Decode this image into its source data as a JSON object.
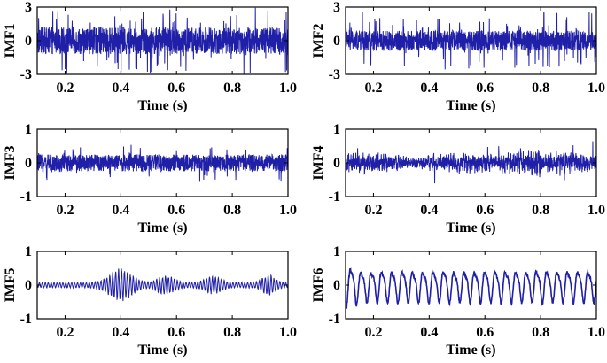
{
  "figure": {
    "signal_color": "#1f1fa8",
    "axis_color": "#000000"
  },
  "chart_data": [
    {
      "type": "line",
      "ylabel": "IMF1",
      "xlabel": "Time (s)",
      "xlim": [
        0.1,
        1.0
      ],
      "ylim": [
        -3,
        3
      ],
      "xticks": [
        0.2,
        0.4,
        0.6,
        0.8,
        1.0
      ],
      "xtick_labels": [
        "0.2",
        "0.4",
        "0.6",
        "0.8",
        "1.0"
      ],
      "yticks": [
        -3,
        0,
        3
      ],
      "ytick_labels": [
        "-3",
        "0",
        "3"
      ],
      "grid": false,
      "series": [
        {
          "signal": "broadband high-frequency noise",
          "amplitude_peak": 3.0,
          "amplitude_typical": 1.2
        }
      ]
    },
    {
      "type": "line",
      "ylabel": "IMF2",
      "xlabel": "Time (s)",
      "xlim": [
        0.1,
        1.0
      ],
      "ylim": [
        -3,
        3
      ],
      "xticks": [
        0.2,
        0.4,
        0.6,
        0.8,
        1.0
      ],
      "xtick_labels": [
        "0.2",
        "0.4",
        "0.6",
        "0.8",
        "1.0"
      ],
      "yticks": [
        -3,
        0,
        3
      ],
      "ytick_labels": [
        "-3",
        "0",
        "3"
      ],
      "grid": false,
      "series": [
        {
          "signal": "broadband high-frequency noise",
          "amplitude_peak": 2.6,
          "amplitude_typical": 0.9
        }
      ]
    },
    {
      "type": "line",
      "ylabel": "IMF3",
      "xlabel": "Time (s)",
      "xlim": [
        0.1,
        1.0
      ],
      "ylim": [
        -1,
        1
      ],
      "xticks": [
        0.2,
        0.4,
        0.6,
        0.8,
        1.0
      ],
      "xtick_labels": [
        "0.2",
        "0.4",
        "0.6",
        "0.8",
        "1.0"
      ],
      "yticks": [
        -1,
        0,
        1
      ],
      "ytick_labels": [
        "-1",
        "0",
        "1"
      ],
      "grid": false,
      "series": [
        {
          "signal": "noise",
          "amplitude_peak": 0.55,
          "amplitude_typical": 0.25
        }
      ]
    },
    {
      "type": "line",
      "ylabel": "IMF4",
      "xlabel": "Time (s)",
      "xlim": [
        0.1,
        1.0
      ],
      "ylim": [
        -1,
        1
      ],
      "xticks": [
        0.2,
        0.4,
        0.6,
        0.8,
        1.0
      ],
      "xtick_labels": [
        "0.2",
        "0.4",
        "0.6",
        "0.8",
        "1.0"
      ],
      "yticks": [
        -1,
        0,
        1
      ],
      "ytick_labels": [
        "-1",
        "0",
        "1"
      ],
      "grid": false,
      "series": [
        {
          "signal": "modulated noise",
          "amplitude_peak": 0.65,
          "amplitude_typical": 0.2
        }
      ]
    },
    {
      "type": "line",
      "ylabel": "IMF5",
      "xlabel": "Time (s)",
      "xlim": [
        0.1,
        1.0
      ],
      "ylim": [
        -1,
        1
      ],
      "xticks": [
        0.2,
        0.4,
        0.6,
        0.8,
        1.0
      ],
      "xtick_labels": [
        "0.2",
        "0.4",
        "0.6",
        "0.8",
        "1.0"
      ],
      "yticks": [
        -1,
        0,
        1
      ],
      "ytick_labels": [
        "-1",
        "0",
        "1"
      ],
      "grid": false,
      "series": [
        {
          "signal": "amplitude-modulated oscillation with bursts near 0.35-0.45 s",
          "amplitude_peak": 0.5,
          "amplitude_typical": 0.15
        }
      ]
    },
    {
      "type": "line",
      "ylabel": "IMF6",
      "xlabel": "Time (s)",
      "xlim": [
        0.1,
        1.0
      ],
      "ylim": [
        -1,
        1
      ],
      "xticks": [
        0.2,
        0.4,
        0.6,
        0.8,
        1.0
      ],
      "xtick_labels": [
        "0.2",
        "0.4",
        "0.6",
        "0.8",
        "1.0"
      ],
      "yticks": [
        -1,
        0,
        1
      ],
      "ytick_labels": [
        "-1",
        "0",
        "1"
      ],
      "grid": false,
      "series": [
        {
          "signal": "quasi-periodic oscillation",
          "cycles_visible": 25,
          "amplitude_peak": 0.6,
          "amplitude_typical": 0.4
        }
      ]
    }
  ]
}
